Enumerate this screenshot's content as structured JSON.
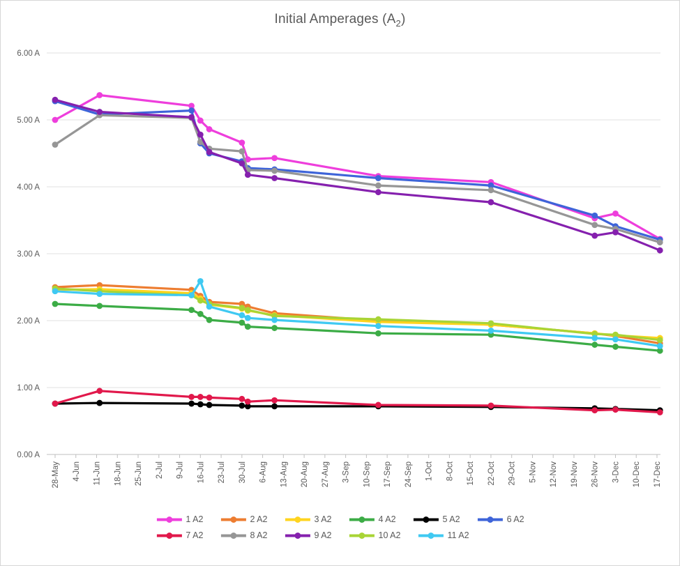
{
  "window": {
    "background": "#FFFFFF",
    "border_color": "#D6D6D6"
  },
  "title": {
    "prefix": "Initial Amperages (A",
    "subscript": "2",
    "suffix": ")",
    "color": "#595959"
  },
  "axes_style": {
    "grid_color": "#E2E2E2",
    "axis_line_color": "#BFBFBF",
    "tick_label_color": "#595959"
  },
  "chart_data": {
    "type": "line",
    "title": "Initial Amperages (A2)",
    "xlabel": "",
    "ylabel": "",
    "grid": "horizontal",
    "legend_position": "bottom",
    "y_axis": {
      "min": 0,
      "max": 6,
      "step": 1,
      "tick_labels": [
        "0.00 A",
        "1.00 A",
        "2.00 A",
        "3.00 A",
        "4.00 A",
        "5.00 A",
        "6.00 A"
      ]
    },
    "x_axis": {
      "type": "weekly-dates",
      "tick_labels": [
        "28-May",
        "4-Jun",
        "11-Jun",
        "18-Jun",
        "25-Jun",
        "2-Jul",
        "9-Jul",
        "16-Jul",
        "23-Jul",
        "30-Jul",
        "6-Aug",
        "13-Aug",
        "20-Aug",
        "27-Aug",
        "3-Sep",
        "10-Sep",
        "17-Sep",
        "24-Sep",
        "1-Oct",
        "8-Oct",
        "15-Oct",
        "22-Oct",
        "29-Oct",
        "5-Nov",
        "12-Nov",
        "19-Nov",
        "26-Nov",
        "3-Dec",
        "10-Dec",
        "17-Dec"
      ]
    },
    "measurements": {
      "dates": [
        "28-May",
        "12-Jun",
        "13-Jul",
        "16-Jul",
        "19-Jul",
        "30-Jul",
        "1-Aug",
        "10-Aug",
        "14-Sep",
        "22-Oct",
        "26-Nov",
        "3-Dec",
        "18-Dec"
      ],
      "day_offsets": [
        0,
        15,
        46,
        49,
        52,
        63,
        65,
        74,
        109,
        147,
        182,
        189,
        204
      ]
    },
    "series": [
      {
        "name": "1 A2",
        "color": "#EE3EDC",
        "values": [
          5.0,
          5.37,
          5.21,
          4.99,
          4.86,
          4.66,
          4.41,
          4.43,
          4.16,
          4.07,
          3.53,
          3.6,
          3.22
        ]
      },
      {
        "name": "2 A2",
        "color": "#ED7D31",
        "values": [
          2.5,
          2.53,
          2.46,
          2.37,
          2.28,
          2.25,
          2.21,
          2.11,
          2.0,
          1.94,
          1.81,
          1.77,
          1.66
        ]
      },
      {
        "name": "3 A2",
        "color": "#FFD41F",
        "values": [
          2.46,
          2.47,
          2.41,
          2.33,
          2.24,
          2.18,
          2.15,
          2.08,
          1.98,
          1.94,
          1.81,
          1.78,
          1.74
        ]
      },
      {
        "name": "4 A2",
        "color": "#3CAC46",
        "values": [
          2.25,
          2.22,
          2.16,
          2.1,
          2.01,
          1.97,
          1.91,
          1.89,
          1.81,
          1.79,
          1.64,
          1.61,
          1.55
        ]
      },
      {
        "name": "5 A2",
        "color": "#000000",
        "values": [
          0.76,
          0.77,
          0.76,
          0.75,
          0.74,
          0.73,
          0.72,
          0.72,
          0.72,
          0.71,
          0.69,
          0.68,
          0.66
        ]
      },
      {
        "name": "6 A2",
        "color": "#3E64D9",
        "values": [
          5.28,
          5.08,
          5.14,
          4.65,
          4.5,
          4.38,
          4.28,
          4.26,
          4.13,
          4.02,
          3.57,
          3.41,
          3.21
        ]
      },
      {
        "name": "7 A2",
        "color": "#E1184B",
        "values": [
          0.76,
          0.95,
          0.86,
          0.86,
          0.85,
          0.83,
          0.79,
          0.81,
          0.74,
          0.73,
          0.66,
          0.67,
          0.63
        ]
      },
      {
        "name": "8 A2",
        "color": "#969696",
        "values": [
          4.63,
          5.07,
          5.03,
          4.67,
          4.57,
          4.53,
          4.25,
          4.24,
          4.02,
          3.95,
          3.43,
          3.37,
          3.17
        ]
      },
      {
        "name": "9 A2",
        "color": "#8520AE",
        "values": [
          5.3,
          5.12,
          5.04,
          4.78,
          4.52,
          4.35,
          4.18,
          4.13,
          3.92,
          3.77,
          3.27,
          3.32,
          3.05
        ]
      },
      {
        "name": "10 A2",
        "color": "#A8D435",
        "values": [
          2.48,
          2.44,
          2.38,
          2.3,
          2.25,
          2.19,
          2.16,
          2.07,
          2.02,
          1.96,
          1.8,
          1.79,
          1.71
        ]
      },
      {
        "name": "11 A2",
        "color": "#3FC9F2",
        "values": [
          2.44,
          2.4,
          2.38,
          2.59,
          2.21,
          2.08,
          2.04,
          2.01,
          1.92,
          1.85,
          1.74,
          1.72,
          1.62
        ]
      }
    ],
    "legend_rows": [
      [
        "1 A2",
        "2 A2",
        "3 A2",
        "4 A2",
        "5 A2",
        "6 A2"
      ],
      [
        "7 A2",
        "8 A2",
        "9 A2",
        "10 A2",
        "11 A2"
      ]
    ]
  }
}
